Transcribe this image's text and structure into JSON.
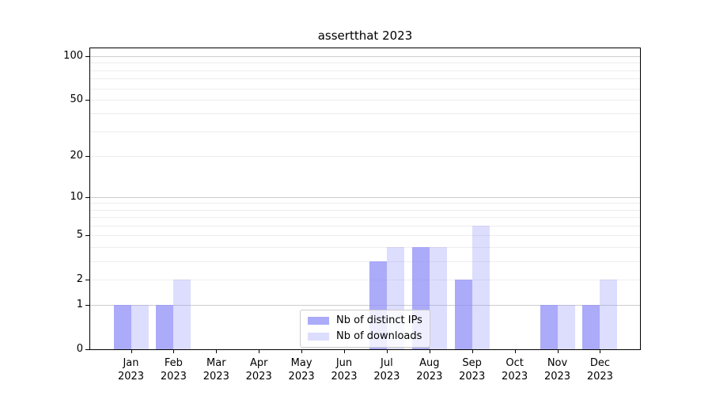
{
  "chart_data": {
    "type": "bar",
    "title": "assertthat 2023",
    "categories": [
      "Jan 2023",
      "Feb 2023",
      "Mar 2023",
      "Apr 2023",
      "May 2023",
      "Jun 2023",
      "Jul 2023",
      "Aug 2023",
      "Sep 2023",
      "Oct 2023",
      "Nov 2023",
      "Dec 2023"
    ],
    "series": [
      {
        "name": "Nb of distinct IPs",
        "values": [
          1,
          1,
          0,
          0,
          0,
          0,
          3,
          4,
          2,
          0,
          1,
          1
        ],
        "color": "#8f8ff8",
        "alpha": 0.75
      },
      {
        "name": "Nb of downloads",
        "values": [
          1,
          2,
          0,
          0,
          0,
          0,
          4,
          4,
          6,
          0,
          1,
          2
        ],
        "color": "#8f8ff8",
        "alpha": 0.3
      }
    ],
    "xlabel": "",
    "ylabel": "",
    "yscale": "log1p",
    "ylim": [
      0,
      113.5
    ],
    "ytick_values": [
      0,
      1,
      2,
      5,
      10,
      20,
      50,
      100
    ],
    "ytick_labels": [
      "0",
      "1",
      "2",
      "5",
      "10",
      "20",
      "50",
      "100"
    ],
    "gridlines_minor": [
      2,
      3,
      4,
      5,
      6,
      7,
      8,
      9,
      20,
      30,
      40,
      50,
      60,
      70,
      80,
      90
    ],
    "gridlines_major": [
      1,
      10,
      100
    ],
    "grid": true,
    "legend": {
      "entries": [
        "Nb of distinct IPs",
        "Nb of downloads"
      ],
      "location": "lower center"
    }
  },
  "colors": {
    "background": "#ffffff",
    "spine": "#000000",
    "grid_minor": "#ededed",
    "grid_major": "#cdcdcd",
    "text": "#000000",
    "legend_border": "#cccccc",
    "bar_base": "#8f8ff8"
  }
}
